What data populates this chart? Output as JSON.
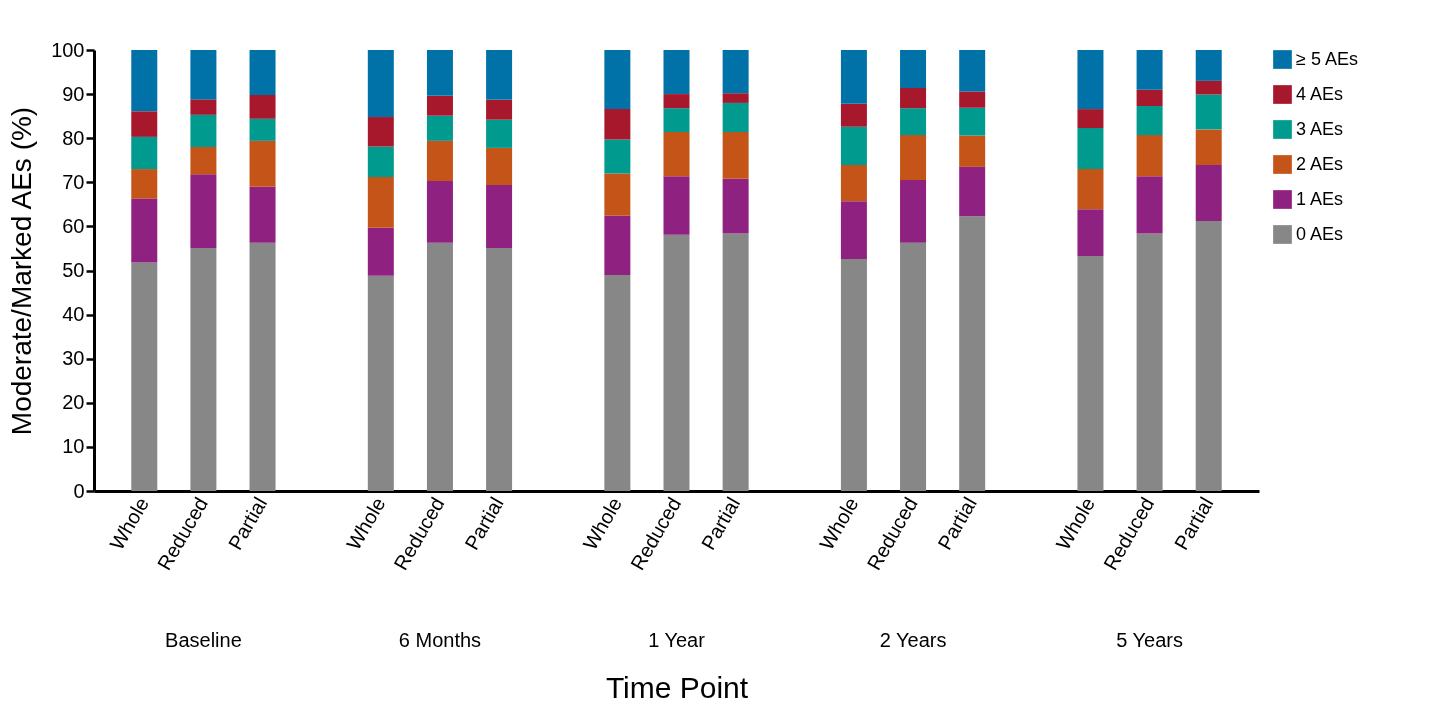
{
  "chart_data": {
    "type": "bar",
    "stacked": true,
    "xlabel": "Time Point",
    "ylabel": "Moderate/Marked AEs (%)",
    "categories": [
      "Whole",
      "Reduced",
      "Partial",
      "Whole",
      "Reduced",
      "Partial",
      "Whole",
      "Reduced",
      "Partial",
      "Whole",
      "Reduced",
      "Partial",
      "Whole",
      "Reduced",
      "Partial"
    ],
    "annotations": [
      "Baseline",
      "6 Months",
      "1 Year",
      "2 Years",
      "5 Years"
    ],
    "series": [
      {
        "name": "0 AEs",
        "color": "#878787",
        "values": [
          51.8,
          55.1,
          56.3,
          48.8,
          56.3,
          55.1,
          49,
          58.1,
          58.4,
          52.6,
          56.3,
          62.3,
          53.3,
          58.4,
          61.2
        ]
      },
      {
        "name": "1 AEs",
        "color": "#8f2181",
        "values": [
          14.5,
          16.7,
          12.7,
          10.9,
          14,
          14.3,
          13.4,
          13.3,
          12.4,
          13.1,
          14.2,
          11.2,
          10.6,
          13,
          12.7
        ]
      },
      {
        "name": "2 AEs",
        "color": "#c45418",
        "values": [
          6.7,
          6.2,
          10.4,
          11.5,
          9.1,
          8.4,
          9.6,
          10,
          10.6,
          8.2,
          10.2,
          7.1,
          9.1,
          9.3,
          8.1
        ]
      },
      {
        "name": "3 AEs",
        "color": "#009a8e",
        "values": [
          7.3,
          7.3,
          5,
          6.9,
          5.7,
          6.4,
          7.7,
          5.4,
          6.6,
          8.7,
          6.1,
          6.3,
          9.3,
          6.6,
          7.9
        ]
      },
      {
        "name": "4 AEs",
        "color": "#a8182c",
        "values": [
          5.8,
          3.5,
          5.4,
          6.7,
          4.5,
          4.5,
          6.9,
          3.2,
          2.2,
          5.2,
          4.6,
          3.7,
          4.3,
          3.7,
          3.1
        ]
      },
      {
        "name": "≥ 5 AEs",
        "color": "#0072a8",
        "values": [
          13.9,
          11.2,
          10.2,
          15.2,
          10.4,
          11.3,
          13.4,
          10,
          9.8,
          12.2,
          8.6,
          9.4,
          13.4,
          9,
          7
        ]
      }
    ],
    "ylim": [
      0,
      100
    ],
    "yticks": [
      0,
      10,
      20,
      30,
      40,
      50,
      60,
      70,
      80,
      90,
      100
    ],
    "grid": false,
    "legend": "top right"
  }
}
